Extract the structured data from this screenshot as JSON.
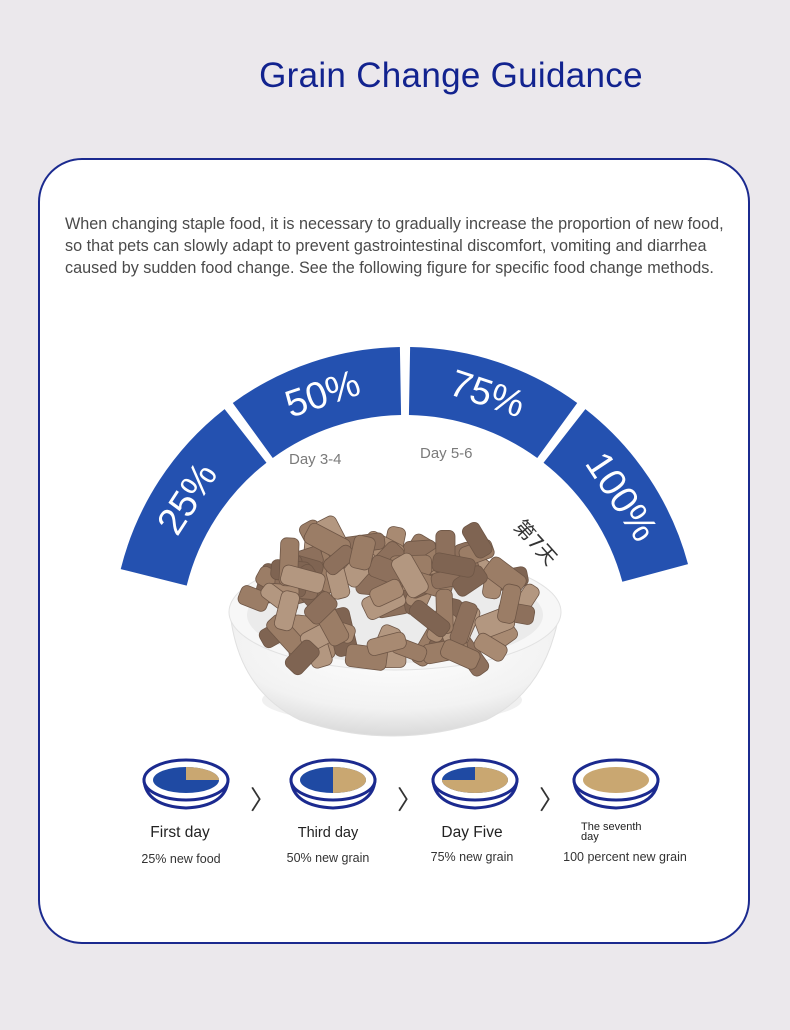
{
  "title": "Grain Change Guidance",
  "intro": "When changing staple food, it is necessary to gradually increase the proportion of new food, so that pets can slowly adapt to prevent gastrointestinal discomfort, vomiting and diarrhea caused by sudden food change. See the following figure for specific food change methods.",
  "gauge": {
    "segments": [
      {
        "label": "25%",
        "fraction": 0.25
      },
      {
        "label": "50%",
        "fraction": 0.5
      },
      {
        "label": "75%",
        "fraction": 0.75
      },
      {
        "label": "100%",
        "fraction": 1.0
      }
    ],
    "inner_labels": {
      "day34": "Day 3-4",
      "day56": "Day 5-6",
      "day7_cn": "第7天"
    },
    "color": "#2451b0"
  },
  "steps": [
    {
      "title": "First day",
      "sub": "25% new food",
      "new_fraction": 0.25
    },
    {
      "title": "Third day",
      "sub": "50% new grain",
      "new_fraction": 0.5
    },
    {
      "title": "Day Five",
      "sub": "75% new grain",
      "new_fraction": 0.75
    },
    {
      "title_line1": "The seventh",
      "title_line2": "day",
      "sub": "100 percent new grain",
      "new_fraction": 1.0
    }
  ],
  "chevron": "〉",
  "colors": {
    "title": "#12238f",
    "border": "#1b2a8f",
    "blue": "#2451b0",
    "old_food": "#1f4aa3",
    "new_food": "#c9a771"
  }
}
